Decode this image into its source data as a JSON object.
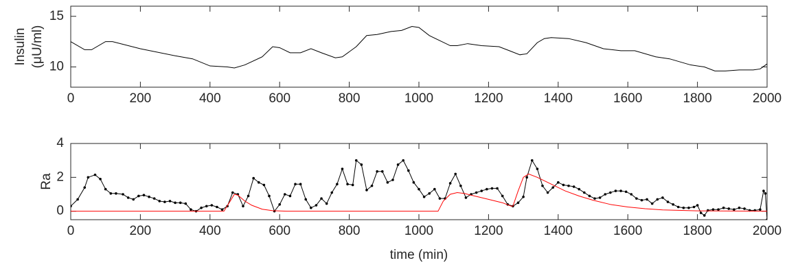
{
  "chart_data": [
    {
      "type": "line",
      "ylabel": [
        "Insulin",
        "(μU/ml)"
      ],
      "xlim": [
        0,
        2000
      ],
      "xticks": [
        0,
        200,
        400,
        600,
        800,
        1000,
        1200,
        1400,
        1600,
        1800,
        2000
      ],
      "ylim": [
        8,
        16
      ],
      "yticks": [
        10,
        15
      ],
      "series": [
        {
          "color": "#000000",
          "x": [
            0,
            40,
            60,
            100,
            120,
            200,
            300,
            350,
            400,
            450,
            470,
            500,
            550,
            580,
            600,
            630,
            660,
            690,
            720,
            760,
            780,
            820,
            850,
            880,
            920,
            950,
            980,
            1000,
            1030,
            1060,
            1090,
            1110,
            1140,
            1180,
            1230,
            1260,
            1290,
            1310,
            1340,
            1360,
            1380,
            1430,
            1480,
            1530,
            1580,
            1620,
            1680,
            1720,
            1780,
            1820,
            1850,
            1880,
            1920,
            1960,
            1980,
            2000
          ],
          "values": [
            12.5,
            11.7,
            11.7,
            12.5,
            12.5,
            11.8,
            11.1,
            10.8,
            10.1,
            10.0,
            9.9,
            10.2,
            11.0,
            12.0,
            11.9,
            11.4,
            11.4,
            11.8,
            11.4,
            10.9,
            11.0,
            12.0,
            13.1,
            13.2,
            13.5,
            13.6,
            14.0,
            13.9,
            13.1,
            12.6,
            12.1,
            12.1,
            12.3,
            12.1,
            12.0,
            11.6,
            11.2,
            11.3,
            12.4,
            12.8,
            12.9,
            12.8,
            12.4,
            11.8,
            11.6,
            11.6,
            11.0,
            10.8,
            10.2,
            10.0,
            9.6,
            9.6,
            9.7,
            9.7,
            9.8,
            10.3
          ]
        }
      ]
    },
    {
      "type": "line",
      "ylabel": "Ra",
      "xlabel": "time (min)",
      "xlim": [
        0,
        2000
      ],
      "xticks": [
        0,
        200,
        400,
        600,
        800,
        1000,
        1200,
        1400,
        1600,
        1800,
        2000
      ],
      "ylim": [
        -0.5,
        4
      ],
      "yticks": [
        0,
        2,
        4
      ],
      "series": [
        {
          "color": "#000000",
          "marker": "dot",
          "x": [
            0,
            20,
            40,
            50,
            70,
            85,
            100,
            115,
            130,
            150,
            165,
            180,
            195,
            210,
            225,
            240,
            255,
            270,
            285,
            300,
            315,
            330,
            345,
            360,
            375,
            390,
            405,
            420,
            435,
            450,
            465,
            480,
            495,
            510,
            525,
            540,
            555,
            570,
            585,
            600,
            615,
            630,
            645,
            660,
            675,
            690,
            705,
            720,
            735,
            750,
            765,
            780,
            795,
            810,
            820,
            835,
            850,
            865,
            880,
            895,
            910,
            925,
            940,
            955,
            970,
            985,
            1000,
            1015,
            1030,
            1045,
            1060,
            1075,
            1090,
            1105,
            1120,
            1135,
            1150,
            1165,
            1180,
            1195,
            1210,
            1225,
            1240,
            1255,
            1270,
            1285,
            1300,
            1310,
            1325,
            1340,
            1355,
            1370,
            1385,
            1400,
            1415,
            1430,
            1445,
            1460,
            1475,
            1490,
            1505,
            1520,
            1535,
            1550,
            1565,
            1580,
            1595,
            1610,
            1625,
            1640,
            1655,
            1670,
            1685,
            1700,
            1715,
            1730,
            1745,
            1760,
            1775,
            1790,
            1800,
            1810,
            1820,
            1830,
            1845,
            1860,
            1875,
            1890,
            1905,
            1920,
            1935,
            1950,
            1965,
            1980,
            1990,
            1995,
            2000
          ],
          "values": [
            0.3,
            0.7,
            1.4,
            2.0,
            2.15,
            1.9,
            1.3,
            1.05,
            1.05,
            1.0,
            0.8,
            0.7,
            0.9,
            0.95,
            0.85,
            0.75,
            0.6,
            0.55,
            0.6,
            0.5,
            0.5,
            0.45,
            0.1,
            0.0,
            0.2,
            0.3,
            0.35,
            0.25,
            0.1,
            0.3,
            1.1,
            1.0,
            0.3,
            0.9,
            1.95,
            1.7,
            1.55,
            0.9,
            0.0,
            0.4,
            1.0,
            0.9,
            1.6,
            1.6,
            0.7,
            0.2,
            0.35,
            0.75,
            0.45,
            1.1,
            1.6,
            2.5,
            1.6,
            1.55,
            3.0,
            2.75,
            1.25,
            1.5,
            2.35,
            2.35,
            1.7,
            1.85,
            2.75,
            3.0,
            2.4,
            1.7,
            1.3,
            0.85,
            1.05,
            1.3,
            0.75,
            0.75,
            1.65,
            2.2,
            1.5,
            0.8,
            1.0,
            1.1,
            1.2,
            1.3,
            1.35,
            1.35,
            0.9,
            0.4,
            0.3,
            0.5,
            0.85,
            2.0,
            3.0,
            2.5,
            1.5,
            1.1,
            1.4,
            1.7,
            1.55,
            1.5,
            1.45,
            1.3,
            1.1,
            0.9,
            0.75,
            0.8,
            1.0,
            1.1,
            1.2,
            1.2,
            1.15,
            1.0,
            0.75,
            0.65,
            0.7,
            0.45,
            0.7,
            0.8,
            0.55,
            0.4,
            0.25,
            0.2,
            0.2,
            0.25,
            0.35,
            -0.1,
            -0.25,
            0.05,
            0.1,
            0.1,
            0.2,
            0.15,
            0.1,
            0.2,
            0.15,
            0.05,
            0.05,
            0.1,
            1.2,
            1.05,
            -0.5
          ]
        },
        {
          "color": "#ff0000",
          "x": [
            0,
            440,
            455,
            470,
            480,
            500,
            520,
            550,
            580,
            620,
            1055,
            1070,
            1090,
            1110,
            1130,
            1160,
            1200,
            1240,
            1265,
            1270,
            1285,
            1300,
            1315,
            1340,
            1380,
            1420,
            1460,
            1500,
            1550,
            1600,
            1650,
            1700,
            1800,
            2000
          ],
          "values": [
            0,
            0,
            0.5,
            1.0,
            0.95,
            0.6,
            0.35,
            0.12,
            0.03,
            0,
            0,
            0.6,
            1.0,
            1.1,
            1.05,
            0.9,
            0.7,
            0.5,
            0.3,
            0.3,
            1.2,
            2.0,
            2.2,
            2.0,
            1.6,
            1.2,
            0.9,
            0.65,
            0.4,
            0.25,
            0.15,
            0.08,
            0.02,
            0
          ]
        }
      ]
    }
  ]
}
